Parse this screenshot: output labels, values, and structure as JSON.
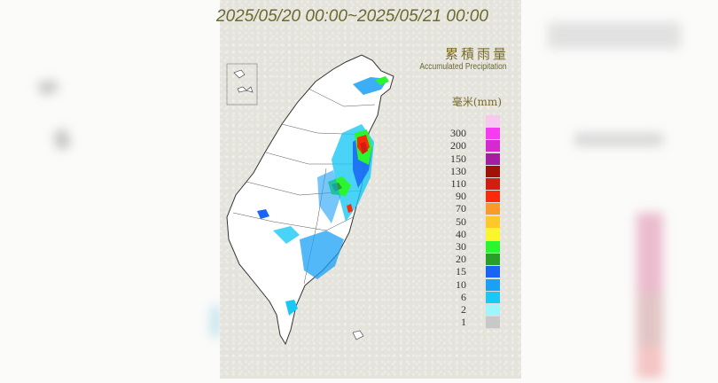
{
  "title": "2025/05/20 00:00~2025/05/21 00:00",
  "legend": {
    "title_zh": "累積雨量",
    "title_en": "Accumulated Precipitation",
    "unit": "毫米(mm)",
    "levels": [
      {
        "label": "",
        "color": "#f7c8f0"
      },
      {
        "label": "300",
        "color": "#f53cf0"
      },
      {
        "label": "200",
        "color": "#d52ad0"
      },
      {
        "label": "150",
        "color": "#a41ea2"
      },
      {
        "label": "130",
        "color": "#a01208"
      },
      {
        "label": "110",
        "color": "#d21e10"
      },
      {
        "label": "90",
        "color": "#fa2a0a"
      },
      {
        "label": "70",
        "color": "#fa9a28"
      },
      {
        "label": "50",
        "color": "#fcc82a"
      },
      {
        "label": "40",
        "color": "#fcf52e"
      },
      {
        "label": "30",
        "color": "#2af52e"
      },
      {
        "label": "20",
        "color": "#2a9e2a"
      },
      {
        "label": "15",
        "color": "#1a64f5"
      },
      {
        "label": "10",
        "color": "#1aa0f5"
      },
      {
        "label": "6",
        "color": "#1ac8f5"
      },
      {
        "label": "2",
        "color": "#9ef5fa"
      },
      {
        "label": "1",
        "color": "#c8c8c8"
      }
    ]
  }
}
